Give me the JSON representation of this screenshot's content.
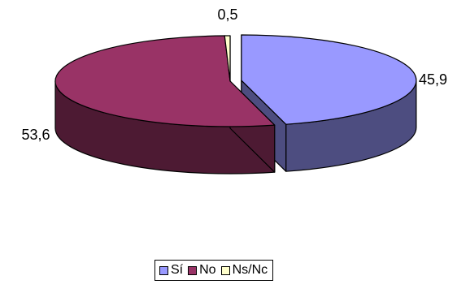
{
  "chart_data": {
    "type": "pie",
    "title": "",
    "categories": [
      "Sí",
      "No",
      "Ns/Nc"
    ],
    "values": [
      45.9,
      53.6,
      0.5
    ],
    "labels": [
      "45,9",
      "53,6",
      "0,5"
    ],
    "colors": [
      "#9999FF",
      "#993366",
      "#FFFFCC"
    ],
    "side_colors": [
      "#4D4D80",
      "#4D1A33",
      "#808066"
    ],
    "exploded": "Sí",
    "legend_position": "bottom",
    "grid": false
  }
}
